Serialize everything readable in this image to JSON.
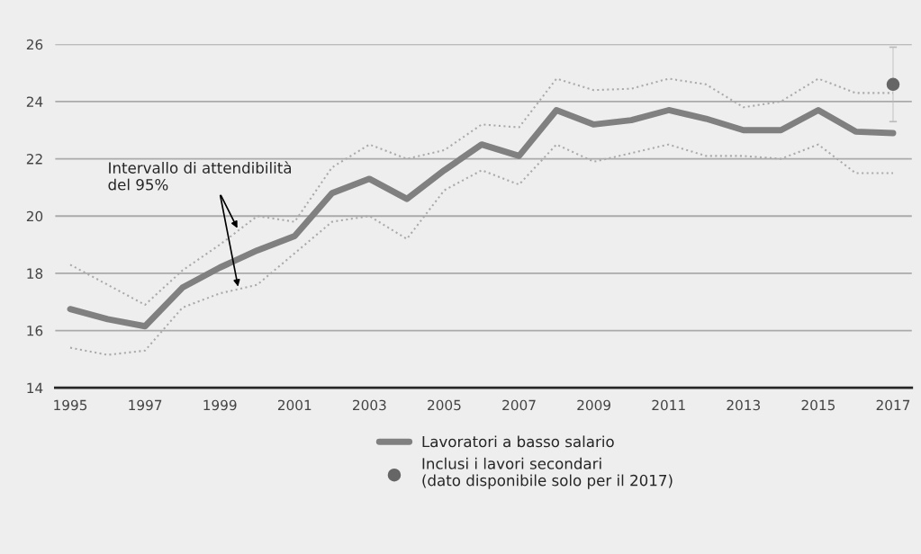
{
  "chart_data": {
    "type": "line",
    "x": [
      1995,
      1996,
      1997,
      1998,
      1999,
      2000,
      2001,
      2002,
      2003,
      2004,
      2005,
      2006,
      2007,
      2008,
      2009,
      2010,
      2011,
      2012,
      2013,
      2014,
      2015,
      2016,
      2017
    ],
    "series": [
      {
        "name": "Lavoratori a basso salario",
        "color": "#808080",
        "line_style": "solid",
        "values": [
          16.75,
          16.4,
          16.15,
          17.5,
          18.2,
          18.8,
          19.3,
          20.8,
          21.3,
          20.6,
          21.6,
          22.5,
          22.1,
          23.7,
          23.2,
          23.35,
          23.7,
          23.4,
          23.0,
          23.0,
          23.7,
          22.95,
          22.9
        ]
      },
      {
        "color": "#aaaaaa",
        "line_style": "dotted",
        "values": [
          18.3,
          17.6,
          16.9,
          18.1,
          19.0,
          20.0,
          19.8,
          21.7,
          22.5,
          22.0,
          22.3,
          23.2,
          23.1,
          24.8,
          24.4,
          24.45,
          24.8,
          24.6,
          23.8,
          24.0,
          24.8,
          24.3,
          24.3
        ]
      },
      {
        "color": "#aaaaaa",
        "line_style": "dotted",
        "values": [
          15.4,
          15.15,
          15.3,
          16.8,
          17.3,
          17.6,
          18.7,
          19.8,
          20.0,
          19.2,
          20.9,
          21.6,
          21.1,
          22.5,
          21.9,
          22.2,
          22.5,
          22.1,
          22.1,
          22.0,
          22.5,
          21.5,
          21.5
        ]
      },
      {
        "name": "Inclusi i lavori secondari\n(dato disponibile solo per il 2017)",
        "type": "scatter",
        "color": "#666666",
        "marker": "circle",
        "x": [
          2017
        ],
        "values": [
          24.6
        ],
        "errors": [
          [
            23.3,
            25.9
          ]
        ]
      }
    ],
    "annotations": [
      "Intervallo di attendibilità\ndel 95%"
    ],
    "xlim": [
      1994.6,
      2017.5
    ],
    "xticks": [
      1995,
      1997,
      1999,
      2001,
      2003,
      2005,
      2007,
      2009,
      2011,
      2013,
      2015,
      2017
    ],
    "ylim": [
      14,
      26
    ],
    "yticks": [
      14,
      16,
      18,
      20,
      22,
      24,
      26
    ],
    "grid": "y",
    "legend": "bottom"
  }
}
